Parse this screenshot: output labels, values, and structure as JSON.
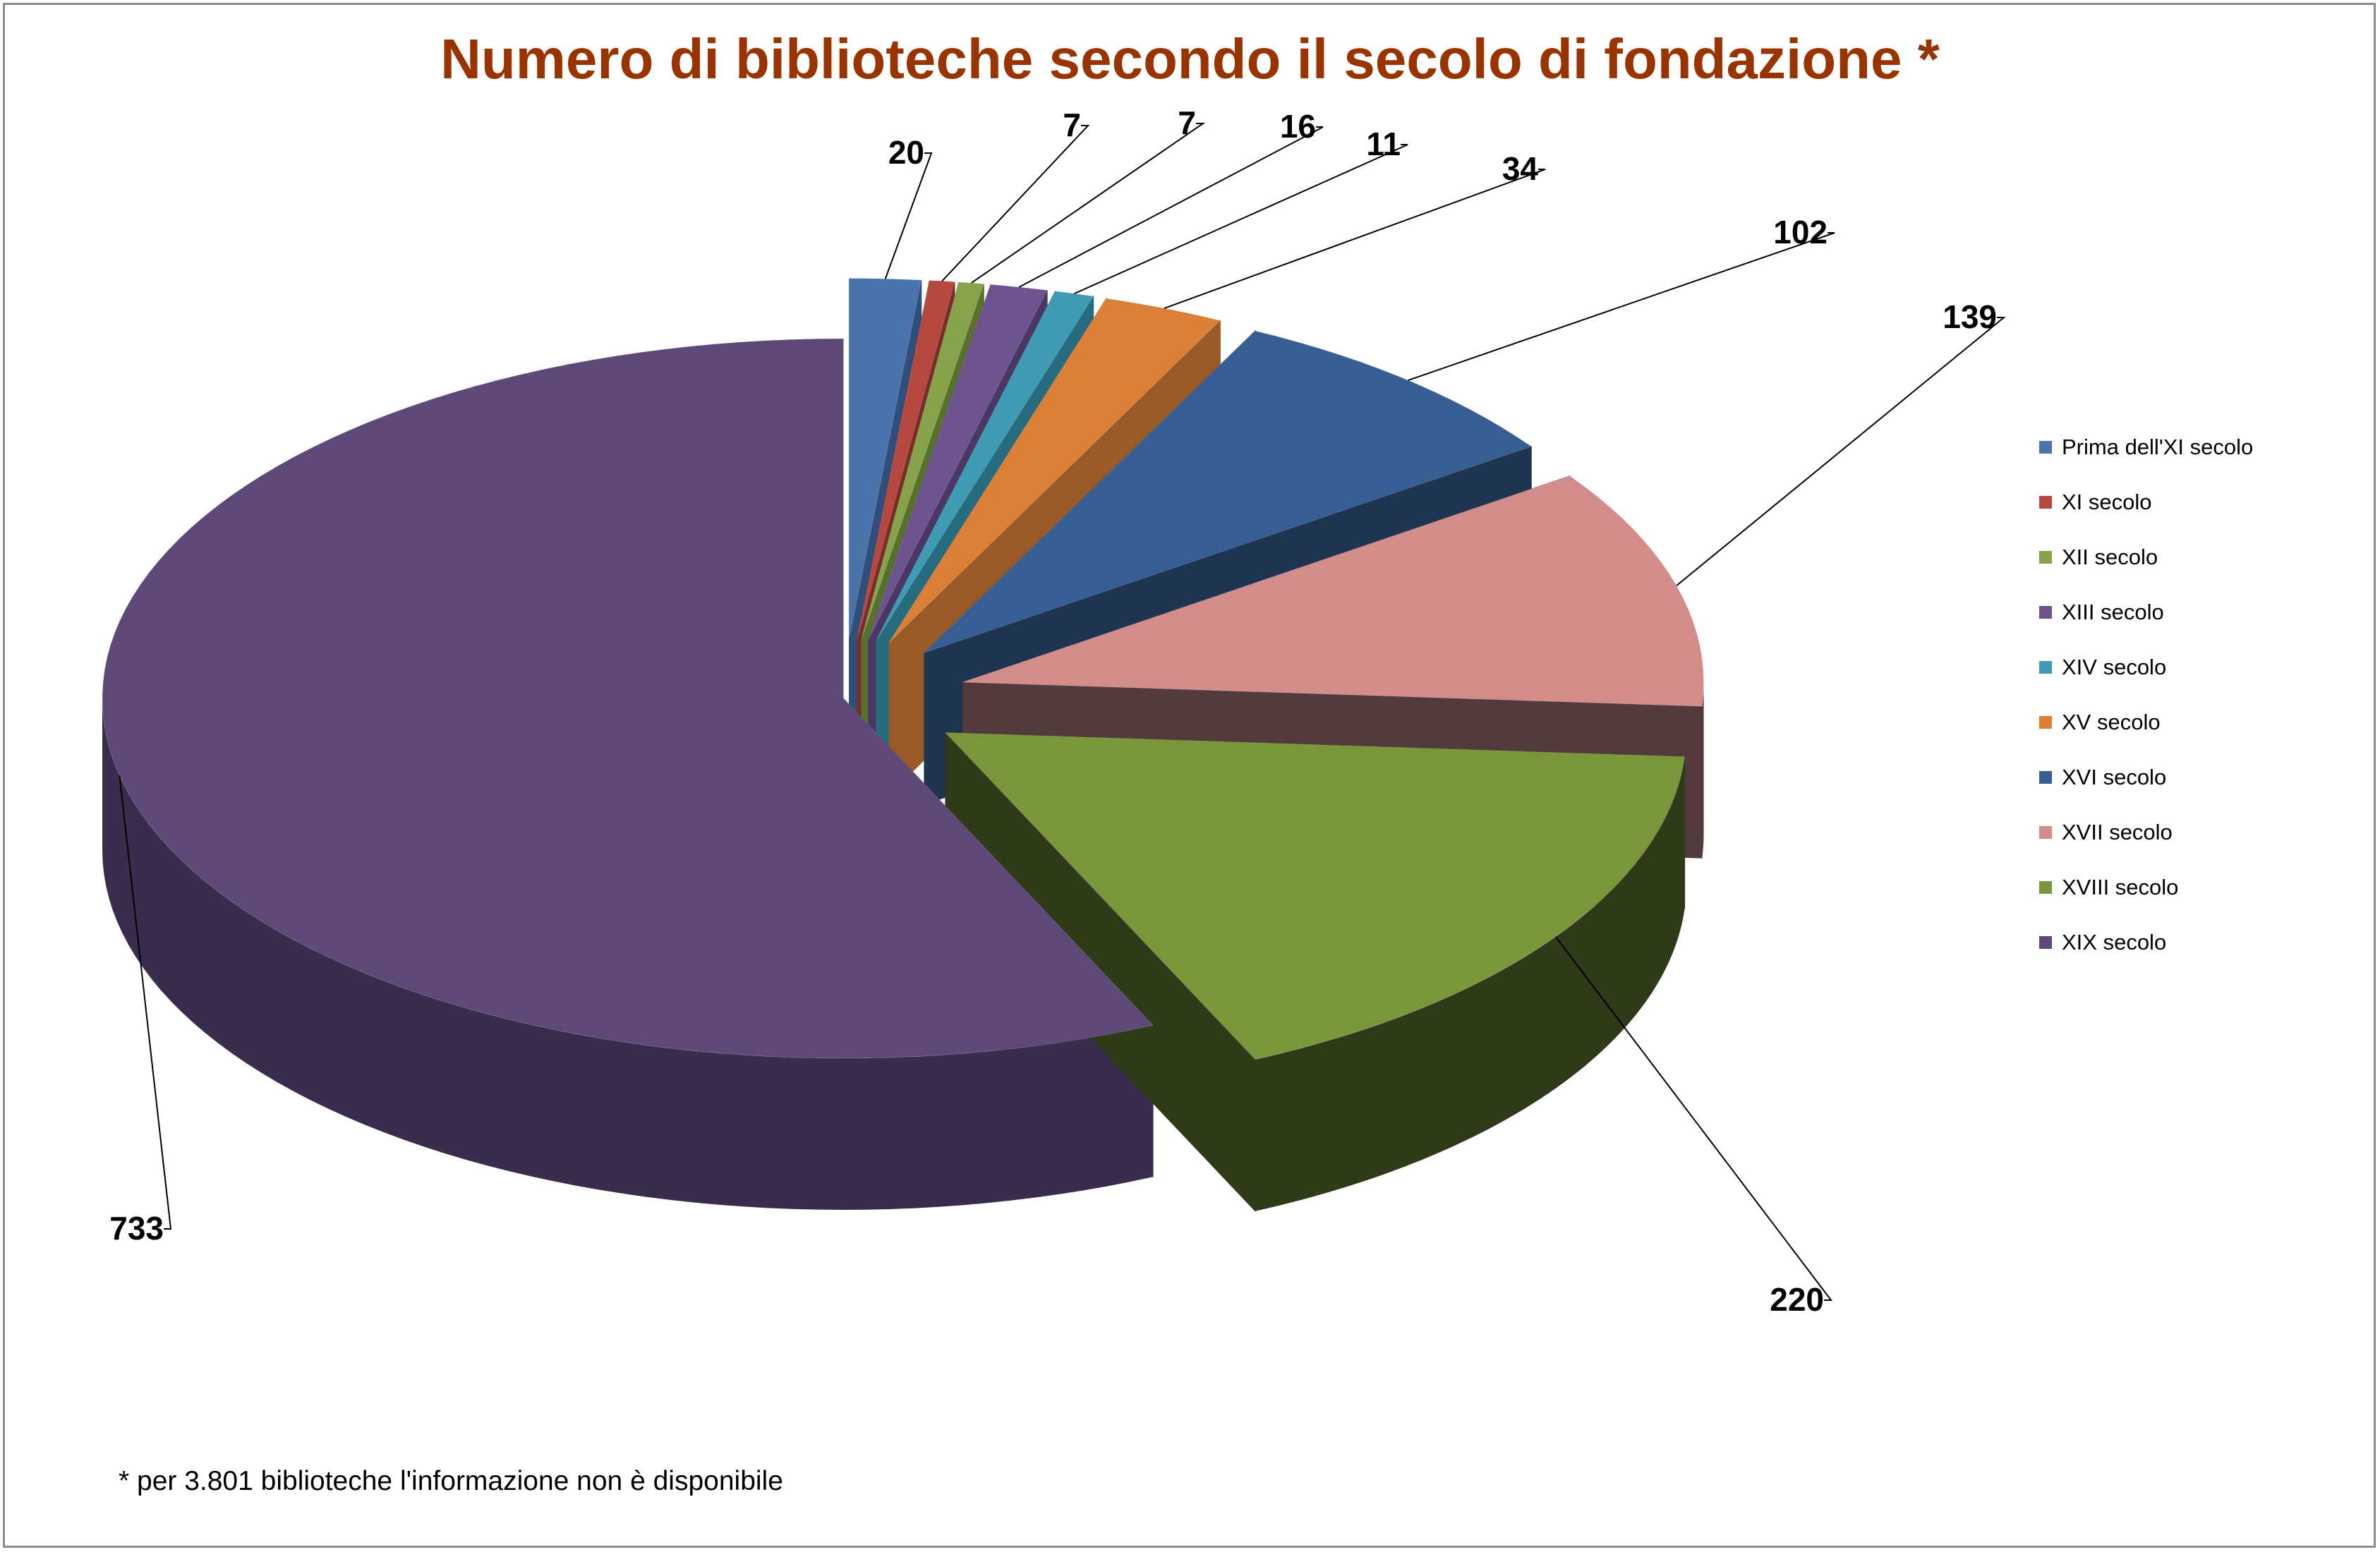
{
  "chart_data": {
    "type": "pie",
    "title": "Numero di biblioteche secondo il secolo di fondazione *",
    "categories": [
      "Prima dell'XI secolo",
      "XI secolo",
      "XII secolo",
      "XIII secolo",
      "XIV secolo",
      "XV secolo",
      "XVI secolo",
      "XVII secolo",
      "XVIII secolo",
      "XIX secolo"
    ],
    "values": [
      20,
      7,
      7,
      16,
      11,
      34,
      102,
      139,
      220,
      733
    ],
    "colors": [
      "#4a73ab",
      "#b5473f",
      "#86a24a",
      "#6e548e",
      "#3f9ab3",
      "#dc7f36",
      "#375e93",
      "#d28d8b",
      "#7a963a",
      "#5d4878"
    ],
    "side_colors": [
      "#2f4e7a",
      "#7a2d28",
      "#57702c",
      "#4a3763",
      "#276c7e",
      "#9a5a27",
      "#1f3450",
      "#533a3c",
      "#2e3a18",
      "#3a2c4c"
    ],
    "exploded": true,
    "legend_position": "right"
  },
  "footnote": "* per 3.801 biblioteche l'informazione non è disponibile"
}
